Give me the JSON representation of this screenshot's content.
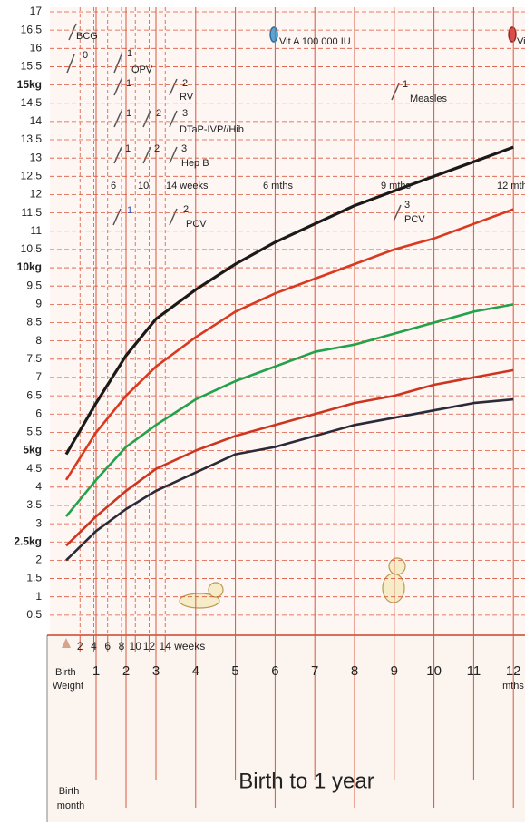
{
  "chart_data": {
    "type": "line",
    "title": "Birth to 1 year",
    "x": [
      0,
      1,
      2,
      3,
      4,
      5,
      6,
      7,
      8,
      9,
      10,
      11,
      12
    ],
    "series": [
      {
        "color": "#1c1a18",
        "values": [
          4.9,
          6.3,
          7.6,
          8.6,
          9.4,
          10.1,
          10.7,
          11.2,
          11.7,
          12.1,
          12.5,
          12.9,
          13.3
        ]
      },
      {
        "color": "#d9391f",
        "values": [
          4.2,
          5.5,
          6.5,
          7.3,
          8.1,
          8.8,
          9.3,
          9.7,
          10.1,
          10.5,
          10.8,
          11.2,
          11.6
        ]
      },
      {
        "color": "#23a24b",
        "values": [
          3.2,
          4.2,
          5.1,
          5.7,
          6.4,
          6.9,
          7.3,
          7.7,
          7.9,
          8.2,
          8.5,
          8.8,
          9.0
        ]
      },
      {
        "color": "#cc3620",
        "values": [
          2.4,
          3.2,
          3.9,
          4.5,
          5.0,
          5.4,
          5.7,
          6.0,
          6.3,
          6.5,
          6.8,
          7.0,
          7.2
        ]
      },
      {
        "color": "#2a2a38",
        "values": [
          2.0,
          2.8,
          3.4,
          3.9,
          4.4,
          4.9,
          5.1,
          5.4,
          5.7,
          5.9,
          6.1,
          6.3,
          6.4
        ]
      }
    ],
    "xlim": [
      0,
      12.3
    ],
    "xticks": [
      {
        "value": 0,
        "label": "Birth"
      },
      1,
      2,
      3,
      4,
      5,
      6,
      7,
      8,
      9,
      10,
      11,
      12
    ],
    "x_sublabels": [
      "Weight",
      "mths"
    ],
    "week_ticks": [
      2,
      4,
      6,
      8,
      10,
      12,
      14
    ],
    "week_unit": "weeks",
    "birth_month_label": [
      "Birth",
      "month"
    ],
    "ylim": [
      0,
      17
    ],
    "yticks": [
      0.5,
      1,
      1.5,
      2,
      {
        "value": 2.5,
        "label": "2.5kg"
      },
      3,
      3.5,
      4,
      4.5,
      {
        "value": 5,
        "label": "5kg"
      },
      5.5,
      6,
      6.5,
      7,
      7.5,
      8,
      8.5,
      9,
      9.5,
      {
        "value": 10,
        "label": "10kg"
      },
      10.5,
      11,
      11.5,
      12,
      12.5,
      13,
      13.5,
      14,
      14.5,
      {
        "value": 15,
        "label": "15kg"
      },
      15.5,
      16,
      16.5,
      17
    ],
    "grid": true,
    "annotations": [
      "BCG",
      "0",
      "1",
      "OPV",
      "1",
      "2",
      "RV",
      "1",
      "2",
      "3",
      "DTaP-IVP//Hib",
      "1",
      "2",
      "3",
      "Hep B",
      "6",
      "10",
      "14 weeks",
      "6 mths",
      "9 mths",
      "12 mth",
      "1",
      "2",
      "PCV",
      "3",
      "PCV",
      "1",
      "Measles",
      "Vit A 100 000 IU",
      "Vi"
    ]
  }
}
